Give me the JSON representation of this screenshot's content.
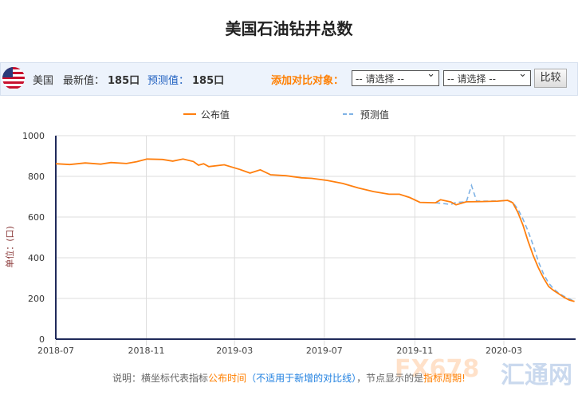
{
  "title": "美国石油钻井总数",
  "toolbar": {
    "country": "美国",
    "latest_label": "最新值：",
    "latest_value": "185口",
    "forecast_label": "预测值：",
    "forecast_value": "185口",
    "compare_label": "添加对比对象：",
    "select1": "-- 请选择 --",
    "select2": "-- 请选择 --",
    "compare_button": "比较",
    "flag_icon": "us-flag-icon"
  },
  "note": {
    "p1": "说明：横坐标代表指标",
    "p2": "公布时间",
    "p3": "（不适用于新增的对比线）",
    "p4": "，节点显示的是",
    "p5": "指标周期",
    "p6": "!"
  },
  "watermark": {
    "a": "FX678",
    "b": "汇通网"
  },
  "colors": {
    "actual": "#ff7f0e",
    "forecast": "#7fb2e5",
    "axis": "#1f2a5a"
  },
  "chart_data": {
    "type": "line",
    "title": "",
    "ylabel": "单位：(口)",
    "ylim": [
      0,
      1000
    ],
    "grid": true,
    "legend": "top",
    "yticks": [
      0,
      200,
      400,
      600,
      800,
      1000
    ],
    "xticks": [
      "2018-07",
      "2018-11",
      "2019-03",
      "2019-07",
      "2019-11",
      "2020-03"
    ],
    "series": [
      {
        "name": "公布值",
        "style": "solid",
        "points": [
          [
            "2018-07-01",
            862
          ],
          [
            "2018-07-20",
            858
          ],
          [
            "2018-08-10",
            866
          ],
          [
            "2018-08-31",
            860
          ],
          [
            "2018-09-14",
            868
          ],
          [
            "2018-10-05",
            863
          ],
          [
            "2018-10-19",
            872
          ],
          [
            "2018-11-02",
            885
          ],
          [
            "2018-11-23",
            883
          ],
          [
            "2018-12-07",
            875
          ],
          [
            "2018-12-21",
            885
          ],
          [
            "2019-01-04",
            873
          ],
          [
            "2019-01-11",
            855
          ],
          [
            "2019-01-18",
            862
          ],
          [
            "2019-01-25",
            848
          ],
          [
            "2019-02-15",
            857
          ],
          [
            "2019-03-08",
            834
          ],
          [
            "2019-03-22",
            816
          ],
          [
            "2019-04-05",
            832
          ],
          [
            "2019-04-19",
            808
          ],
          [
            "2019-05-10",
            803
          ],
          [
            "2019-05-31",
            793
          ],
          [
            "2019-06-14",
            790
          ],
          [
            "2019-07-05",
            780
          ],
          [
            "2019-07-26",
            765
          ],
          [
            "2019-08-16",
            743
          ],
          [
            "2019-09-06",
            725
          ],
          [
            "2019-09-27",
            712
          ],
          [
            "2019-10-11",
            712
          ],
          [
            "2019-10-25",
            696
          ],
          [
            "2019-11-08",
            672
          ],
          [
            "2019-11-29",
            670
          ],
          [
            "2019-12-06",
            685
          ],
          [
            "2019-12-20",
            674
          ],
          [
            "2019-12-27",
            660
          ],
          [
            "2020-01-10",
            675
          ],
          [
            "2020-01-31",
            676
          ],
          [
            "2020-02-21",
            678
          ],
          [
            "2020-03-06",
            682
          ],
          [
            "2020-03-13",
            670
          ],
          [
            "2020-03-20",
            624
          ],
          [
            "2020-03-27",
            560
          ],
          [
            "2020-04-03",
            480
          ],
          [
            "2020-04-10",
            410
          ],
          [
            "2020-04-17",
            350
          ],
          [
            "2020-04-24",
            300
          ],
          [
            "2020-05-01",
            258
          ],
          [
            "2020-05-08",
            238
          ],
          [
            "2020-05-15",
            222
          ],
          [
            "2020-05-22",
            205
          ],
          [
            "2020-05-29",
            192
          ],
          [
            "2020-06-05",
            185
          ]
        ]
      },
      {
        "name": "预测值",
        "style": "dashed",
        "points": [
          [
            "2019-11-29",
            670
          ],
          [
            "2019-12-13",
            665
          ],
          [
            "2019-12-20",
            662
          ],
          [
            "2019-12-27",
            672
          ],
          [
            "2020-01-10",
            674
          ],
          [
            "2020-01-17",
            755
          ],
          [
            "2020-01-24",
            678
          ],
          [
            "2020-02-21",
            679
          ],
          [
            "2020-03-06",
            682
          ],
          [
            "2020-03-13",
            672
          ],
          [
            "2020-03-20",
            640
          ],
          [
            "2020-03-27",
            590
          ],
          [
            "2020-04-03",
            530
          ],
          [
            "2020-04-10",
            460
          ],
          [
            "2020-04-17",
            380
          ],
          [
            "2020-04-24",
            320
          ],
          [
            "2020-05-01",
            275
          ],
          [
            "2020-05-08",
            245
          ],
          [
            "2020-05-15",
            225
          ],
          [
            "2020-05-22",
            210
          ],
          [
            "2020-05-29",
            198
          ],
          [
            "2020-06-05",
            185
          ]
        ]
      }
    ]
  }
}
